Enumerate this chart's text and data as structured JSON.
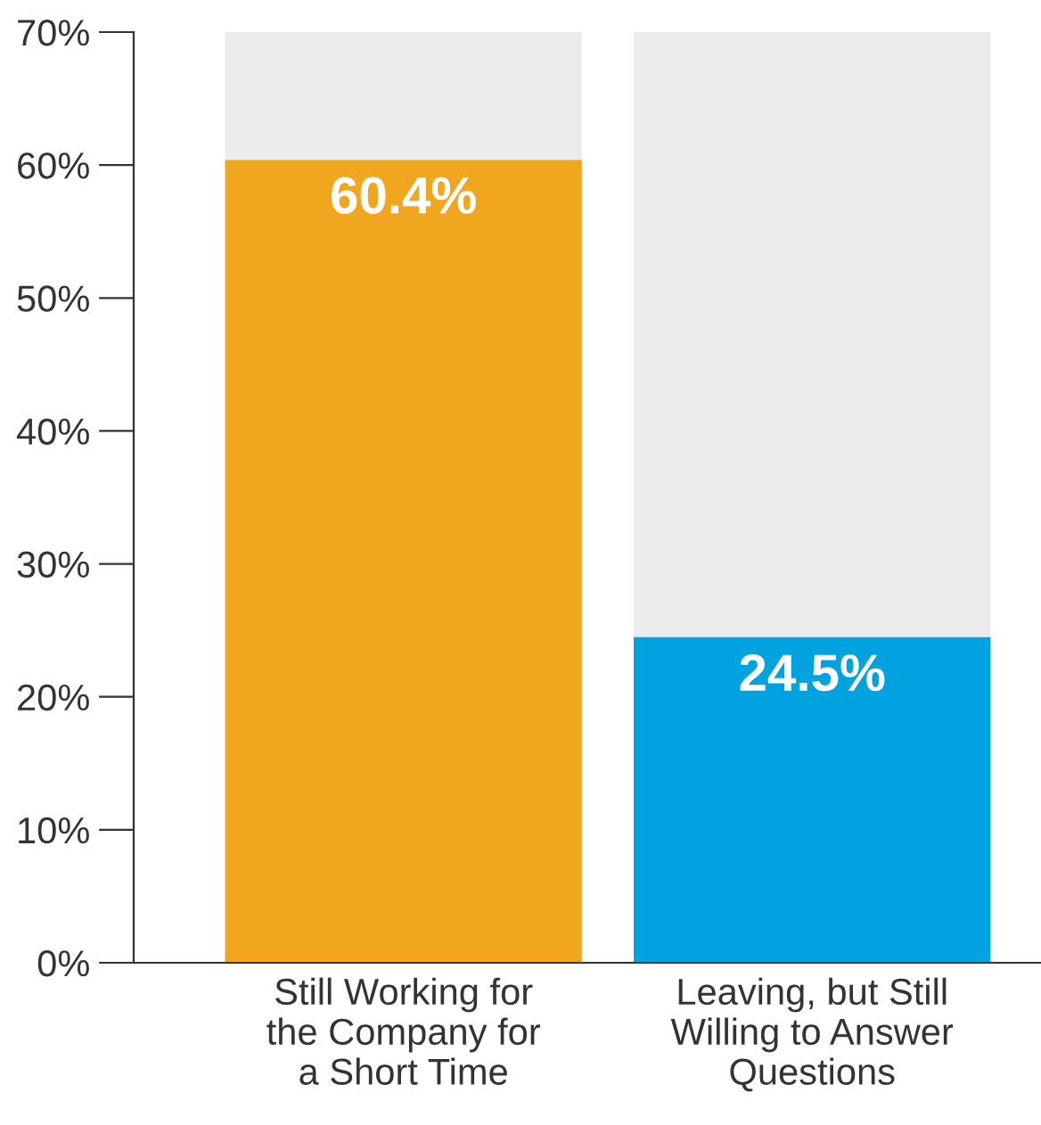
{
  "chart_data": {
    "type": "bar",
    "stacked": true,
    "categories": [
      "Still Working for\nthe Company for\na Short Time",
      "Leaving, but Still\nWilling to Answer\nQuestions"
    ],
    "series": [
      {
        "colors": [
          "#f0a71f",
          "#00a3e0"
        ],
        "values": [
          60.4,
          24.5
        ],
        "value_labels": [
          "60.4%",
          "24.5%"
        ]
      },
      {
        "color": "#ebebeb",
        "values": [
          9.6,
          45.5
        ]
      }
    ],
    "ylim": [
      0,
      70
    ],
    "yticks": [
      {
        "value": 0,
        "label": "0%"
      },
      {
        "value": 10,
        "label": "10%"
      },
      {
        "value": 20,
        "label": "20%"
      },
      {
        "value": 30,
        "label": "30%"
      },
      {
        "value": 40,
        "label": "40%"
      },
      {
        "value": 50,
        "label": "50%"
      },
      {
        "value": 60,
        "label": "60%"
      },
      {
        "value": 70,
        "label": "70%"
      }
    ],
    "grid": false,
    "legend": false
  }
}
